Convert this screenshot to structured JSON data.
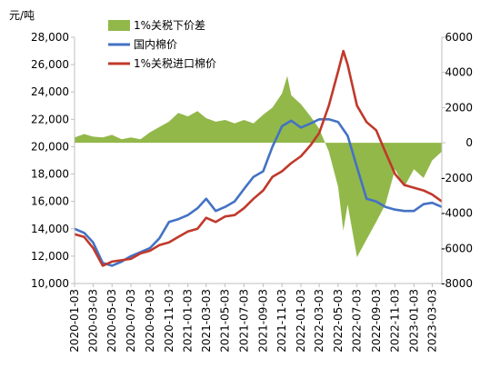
{
  "chart_data": {
    "type": "area+line",
    "unit_label": "元/吨",
    "legend_position": "top-center",
    "grid": false,
    "y_left": {
      "min": 10000,
      "max": 28000,
      "ticks": [
        "10,000",
        "12,000",
        "14,000",
        "16,000",
        "18,000",
        "20,000",
        "22,000",
        "24,000",
        "26,000",
        "28,000"
      ]
    },
    "y_right": {
      "min": -8000,
      "max": 6000,
      "ticks": [
        "-8000",
        "-6000",
        "-4000",
        "-2000",
        "0",
        "2000",
        "4000",
        "6000"
      ]
    },
    "x_ticks": [
      "2020-01-03",
      "2020-03-03",
      "2020-05-03",
      "2020-07-03",
      "2020-09-03",
      "2020-11-03",
      "2021-01-03",
      "2021-03-03",
      "2021-05-03",
      "2021-07-03",
      "2021-09-03",
      "2021-11-03",
      "2022-01-03",
      "2022-03-03",
      "2022-05-03",
      "2022-07-03",
      "2022-09-03",
      "2022-11-03",
      "2023-01-03",
      "2023-03-03"
    ],
    "series": [
      {
        "name": "1%关税下价差",
        "kind": "area",
        "axis": "right",
        "color": "#92b84a",
        "points": [
          [
            "2020-01-03",
            300
          ],
          [
            "2020-02-03",
            500
          ],
          [
            "2020-03-03",
            350
          ],
          [
            "2020-04-03",
            300
          ],
          [
            "2020-05-03",
            450
          ],
          [
            "2020-06-03",
            200
          ],
          [
            "2020-07-03",
            300
          ],
          [
            "2020-08-03",
            200
          ],
          [
            "2020-09-03",
            600
          ],
          [
            "2020-10-03",
            900
          ],
          [
            "2020-11-03",
            1200
          ],
          [
            "2020-12-03",
            1700
          ],
          [
            "2021-01-03",
            1500
          ],
          [
            "2021-02-03",
            1800
          ],
          [
            "2021-03-03",
            1400
          ],
          [
            "2021-04-03",
            1200
          ],
          [
            "2021-05-03",
            1300
          ],
          [
            "2021-06-03",
            1100
          ],
          [
            "2021-07-03",
            1300
          ],
          [
            "2021-08-03",
            1100
          ],
          [
            "2021-09-03",
            1600
          ],
          [
            "2021-10-03",
            2000
          ],
          [
            "2021-11-03",
            2800
          ],
          [
            "2021-11-20",
            3800
          ],
          [
            "2021-12-03",
            2700
          ],
          [
            "2022-01-03",
            2200
          ],
          [
            "2022-02-03",
            1500
          ],
          [
            "2022-03-03",
            800
          ],
          [
            "2022-04-03",
            -500
          ],
          [
            "2022-05-03",
            -2500
          ],
          [
            "2022-05-20",
            -5000
          ],
          [
            "2022-06-03",
            -3500
          ],
          [
            "2022-07-03",
            -6500
          ],
          [
            "2022-08-03",
            -5500
          ],
          [
            "2022-09-03",
            -4500
          ],
          [
            "2022-10-03",
            -3500
          ],
          [
            "2022-11-03",
            -1500
          ],
          [
            "2022-12-03",
            -2500
          ],
          [
            "2023-01-03",
            -1500
          ],
          [
            "2023-02-03",
            -2000
          ],
          [
            "2023-03-03",
            -1000
          ],
          [
            "2023-04-03",
            -500
          ]
        ]
      },
      {
        "name": "国内棉价",
        "kind": "line",
        "axis": "left",
        "color": "#4472c4",
        "points": [
          [
            "2020-01-03",
            14000
          ],
          [
            "2020-02-03",
            13700
          ],
          [
            "2020-03-03",
            13000
          ],
          [
            "2020-04-03",
            11500
          ],
          [
            "2020-05-03",
            11300
          ],
          [
            "2020-06-03",
            11600
          ],
          [
            "2020-07-03",
            12000
          ],
          [
            "2020-08-03",
            12300
          ],
          [
            "2020-09-03",
            12600
          ],
          [
            "2020-10-03",
            13300
          ],
          [
            "2020-11-03",
            14500
          ],
          [
            "2020-12-03",
            14700
          ],
          [
            "2021-01-03",
            15000
          ],
          [
            "2021-02-03",
            15500
          ],
          [
            "2021-03-03",
            16200
          ],
          [
            "2021-04-03",
            15300
          ],
          [
            "2021-05-03",
            15600
          ],
          [
            "2021-06-03",
            16000
          ],
          [
            "2021-07-03",
            16900
          ],
          [
            "2021-08-03",
            17800
          ],
          [
            "2021-09-03",
            18200
          ],
          [
            "2021-10-03",
            20000
          ],
          [
            "2021-11-03",
            21500
          ],
          [
            "2021-12-03",
            21900
          ],
          [
            "2022-01-03",
            21400
          ],
          [
            "2022-02-03",
            21700
          ],
          [
            "2022-03-03",
            22000
          ],
          [
            "2022-04-03",
            22000
          ],
          [
            "2022-05-03",
            21800
          ],
          [
            "2022-06-03",
            20800
          ],
          [
            "2022-07-03",
            18500
          ],
          [
            "2022-08-03",
            16200
          ],
          [
            "2022-09-03",
            16000
          ],
          [
            "2022-10-03",
            15600
          ],
          [
            "2022-11-03",
            15400
          ],
          [
            "2022-12-03",
            15300
          ],
          [
            "2023-01-03",
            15300
          ],
          [
            "2023-02-03",
            15800
          ],
          [
            "2023-03-03",
            15900
          ],
          [
            "2023-04-03",
            15600
          ]
        ]
      },
      {
        "name": "1%关税进口棉价",
        "kind": "line",
        "axis": "left",
        "color": "#c0392b",
        "points": [
          [
            "2020-01-03",
            13600
          ],
          [
            "2020-02-03",
            13400
          ],
          [
            "2020-03-03",
            12600
          ],
          [
            "2020-04-03",
            11300
          ],
          [
            "2020-05-03",
            11600
          ],
          [
            "2020-06-03",
            11700
          ],
          [
            "2020-07-03",
            11800
          ],
          [
            "2020-08-03",
            12200
          ],
          [
            "2020-09-03",
            12400
          ],
          [
            "2020-10-03",
            12800
          ],
          [
            "2020-11-03",
            13000
          ],
          [
            "2020-12-03",
            13400
          ],
          [
            "2021-01-03",
            13800
          ],
          [
            "2021-02-03",
            14000
          ],
          [
            "2021-03-03",
            14800
          ],
          [
            "2021-04-03",
            14500
          ],
          [
            "2021-05-03",
            14900
          ],
          [
            "2021-06-03",
            15000
          ],
          [
            "2021-07-03",
            15500
          ],
          [
            "2021-08-03",
            16200
          ],
          [
            "2021-09-03",
            16800
          ],
          [
            "2021-10-03",
            17800
          ],
          [
            "2021-11-03",
            18200
          ],
          [
            "2021-12-03",
            18800
          ],
          [
            "2022-01-03",
            19300
          ],
          [
            "2022-02-03",
            20100
          ],
          [
            "2022-03-03",
            21000
          ],
          [
            "2022-04-03",
            23000
          ],
          [
            "2022-05-03",
            25500
          ],
          [
            "2022-05-20",
            27000
          ],
          [
            "2022-06-03",
            26000
          ],
          [
            "2022-07-03",
            23000
          ],
          [
            "2022-08-03",
            21800
          ],
          [
            "2022-09-03",
            21200
          ],
          [
            "2022-10-03",
            19600
          ],
          [
            "2022-11-03",
            18000
          ],
          [
            "2022-12-03",
            17200
          ],
          [
            "2023-01-03",
            17000
          ],
          [
            "2023-02-03",
            16800
          ],
          [
            "2023-03-03",
            16500
          ],
          [
            "2023-04-03",
            16000
          ]
        ]
      }
    ]
  }
}
